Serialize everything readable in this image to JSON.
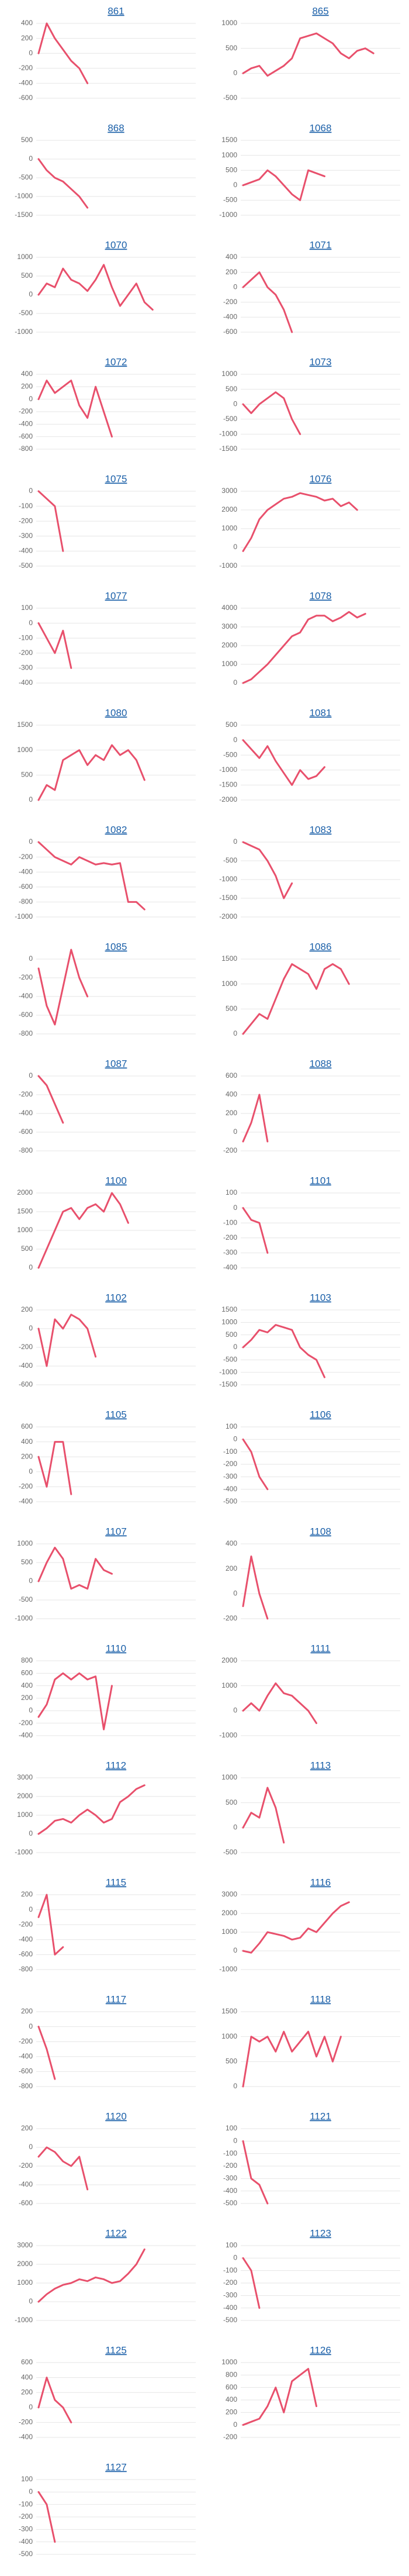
{
  "chart_data": [
    {
      "type": "line",
      "title": "861",
      "color": "#e8506c",
      "ylim": [
        -600,
        400
      ],
      "yticks": [
        -600,
        -400,
        -200,
        0,
        200,
        400
      ],
      "values": [
        0,
        400,
        200,
        50,
        -100,
        -200,
        -400
      ]
    },
    {
      "type": "line",
      "title": "865",
      "color": "#e8506c",
      "ylim": [
        -500,
        1000
      ],
      "yticks": [
        -500,
        0,
        500,
        1000
      ],
      "values": [
        0,
        100,
        150,
        -50,
        50,
        150,
        300,
        700,
        750,
        800,
        700,
        600,
        400,
        300,
        450,
        500,
        400
      ]
    },
    {
      "type": "line",
      "title": "868",
      "color": "#e8506c",
      "ylim": [
        -1500,
        500
      ],
      "yticks": [
        -1500,
        -1000,
        -500,
        0,
        500
      ],
      "values": [
        0,
        -300,
        -500,
        -600,
        -800,
        -1000,
        -1300
      ]
    },
    {
      "type": "line",
      "title": "1068",
      "color": "#e8506c",
      "ylim": [
        -1000,
        1500
      ],
      "yticks": [
        -1000,
        -500,
        0,
        500,
        1000,
        1500
      ],
      "values": [
        0,
        100,
        200,
        500,
        300,
        0,
        -300,
        -500,
        500,
        400,
        300
      ]
    },
    {
      "type": "line",
      "title": "1070",
      "color": "#e8506c",
      "ylim": [
        -1000,
        1000
      ],
      "yticks": [
        -1000,
        -500,
        0,
        500,
        1000
      ],
      "values": [
        0,
        300,
        200,
        700,
        400,
        300,
        100,
        400,
        800,
        200,
        -300,
        0,
        300,
        -200,
        -400
      ]
    },
    {
      "type": "line",
      "title": "1071",
      "color": "#e8506c",
      "ylim": [
        -600,
        400
      ],
      "yticks": [
        -600,
        -400,
        -200,
        0,
        200,
        400
      ],
      "values": [
        0,
        100,
        200,
        0,
        -100,
        -300,
        -600
      ]
    },
    {
      "type": "line",
      "title": "1072",
      "color": "#e8506c",
      "ylim": [
        -800,
        400
      ],
      "yticks": [
        -800,
        -600,
        -400,
        -200,
        0,
        200,
        400
      ],
      "values": [
        0,
        300,
        100,
        200,
        300,
        -100,
        -300,
        200,
        -200,
        -600
      ]
    },
    {
      "type": "line",
      "title": "1073",
      "color": "#e8506c",
      "ylim": [
        -1500,
        1000
      ],
      "yticks": [
        -1500,
        -1000,
        -500,
        0,
        500,
        1000
      ],
      "values": [
        0,
        -300,
        0,
        200,
        400,
        200,
        -500,
        -1000
      ]
    },
    {
      "type": "line",
      "title": "1075",
      "color": "#e8506c",
      "ylim": [
        -500,
        0
      ],
      "yticks": [
        -500,
        -400,
        -300,
        -200,
        -100,
        0
      ],
      "values": [
        0,
        -50,
        -100,
        -400
      ]
    },
    {
      "type": "line",
      "title": "1076",
      "color": "#e8506c",
      "ylim": [
        -1000,
        3000
      ],
      "yticks": [
        -1000,
        0,
        1000,
        2000,
        3000
      ],
      "values": [
        -200,
        500,
        1500,
        2000,
        2300,
        2600,
        2700,
        2900,
        2800,
        2700,
        2500,
        2600,
        2200,
        2400,
        2000
      ]
    },
    {
      "type": "line",
      "title": "1077",
      "color": "#e8506c",
      "ylim": [
        -400,
        100
      ],
      "yticks": [
        -400,
        -300,
        -200,
        -100,
        0,
        100
      ],
      "values": [
        0,
        -100,
        -200,
        -50,
        -300
      ]
    },
    {
      "type": "line",
      "title": "1078",
      "color": "#e8506c",
      "ylim": [
        0,
        4000
      ],
      "yticks": [
        0,
        1000,
        2000,
        3000,
        4000
      ],
      "values": [
        0,
        200,
        600,
        1000,
        1500,
        2000,
        2500,
        2700,
        3400,
        3600,
        3600,
        3300,
        3500,
        3800,
        3500,
        3700
      ]
    },
    {
      "type": "line",
      "title": "1080",
      "color": "#e8506c",
      "ylim": [
        0,
        1500
      ],
      "yticks": [
        0,
        500,
        1000,
        1500
      ],
      "values": [
        0,
        300,
        200,
        800,
        900,
        1000,
        700,
        900,
        800,
        1100,
        900,
        1000,
        800,
        400
      ]
    },
    {
      "type": "line",
      "title": "1081",
      "color": "#e8506c",
      "ylim": [
        -2000,
        500
      ],
      "yticks": [
        -2000,
        -1500,
        -1000,
        -500,
        0,
        500
      ],
      "values": [
        0,
        -300,
        -600,
        -200,
        -700,
        -1100,
        -1500,
        -1000,
        -1300,
        -1200,
        -900
      ]
    },
    {
      "type": "line",
      "title": "1082",
      "color": "#e8506c",
      "ylim": [
        -1000,
        0
      ],
      "yticks": [
        -1000,
        -800,
        -600,
        -400,
        -200,
        0
      ],
      "values": [
        0,
        -100,
        -200,
        -250,
        -300,
        -200,
        -250,
        -300,
        -280,
        -300,
        -280,
        -800,
        -800,
        -900
      ]
    },
    {
      "type": "line",
      "title": "1083",
      "color": "#e8506c",
      "ylim": [
        -2000,
        0
      ],
      "yticks": [
        -2000,
        -1500,
        -1000,
        -500,
        0
      ],
      "values": [
        0,
        -100,
        -200,
        -500,
        -900,
        -1500,
        -1100
      ]
    },
    {
      "type": "line",
      "title": "1085",
      "color": "#e8506c",
      "ylim": [
        -800,
        0
      ],
      "yticks": [
        -800,
        -600,
        -400,
        -200,
        0
      ],
      "values": [
        -100,
        -500,
        -700,
        -300,
        100,
        -200,
        -400
      ]
    },
    {
      "type": "line",
      "title": "1086",
      "color": "#e8506c",
      "ylim": [
        0,
        1500
      ],
      "yticks": [
        0,
        500,
        1000,
        1500
      ],
      "values": [
        0,
        200,
        400,
        300,
        700,
        1100,
        1400,
        1300,
        1200,
        900,
        1300,
        1400,
        1300,
        1000
      ]
    },
    {
      "type": "line",
      "title": "1087",
      "color": "#e8506c",
      "ylim": [
        -800,
        0
      ],
      "yticks": [
        -800,
        -600,
        -400,
        -200,
        0
      ],
      "values": [
        0,
        -100,
        -300,
        -500
      ]
    },
    {
      "type": "line",
      "title": "1088",
      "color": "#e8506c",
      "ylim": [
        -200,
        600
      ],
      "yticks": [
        -200,
        0,
        200,
        400,
        600
      ],
      "values": [
        -100,
        100,
        400,
        -100
      ]
    },
    {
      "type": "line",
      "title": "1100",
      "color": "#e8506c",
      "ylim": [
        0,
        2000
      ],
      "yticks": [
        0,
        500,
        1000,
        1500,
        2000
      ],
      "values": [
        0,
        500,
        1000,
        1500,
        1600,
        1300,
        1600,
        1700,
        1500,
        2000,
        1700,
        1200
      ]
    },
    {
      "type": "line",
      "title": "1101",
      "color": "#e8506c",
      "ylim": [
        -400,
        100
      ],
      "yticks": [
        -400,
        -300,
        -200,
        -100,
        0,
        100
      ],
      "values": [
        0,
        -80,
        -100,
        -300
      ]
    },
    {
      "type": "line",
      "title": "1102",
      "color": "#e8506c",
      "ylim": [
        -600,
        200
      ],
      "yticks": [
        -600,
        -400,
        -200,
        0,
        200
      ],
      "values": [
        0,
        -400,
        100,
        0,
        150,
        100,
        0,
        -300
      ]
    },
    {
      "type": "line",
      "title": "1103",
      "color": "#e8506c",
      "ylim": [
        -1500,
        1500
      ],
      "yticks": [
        -1500,
        -1000,
        -500,
        0,
        500,
        1000,
        1500
      ],
      "values": [
        0,
        300,
        700,
        600,
        900,
        800,
        700,
        0,
        -300,
        -500,
        -1200
      ]
    },
    {
      "type": "line",
      "title": "1105",
      "color": "#e8506c",
      "ylim": [
        -400,
        600
      ],
      "yticks": [
        -400,
        -200,
        0,
        200,
        400,
        600
      ],
      "values": [
        200,
        -200,
        400,
        400,
        -300
      ]
    },
    {
      "type": "line",
      "title": "1106",
      "color": "#e8506c",
      "ylim": [
        -500,
        100
      ],
      "yticks": [
        -500,
        -400,
        -300,
        -200,
        -100,
        0,
        100
      ],
      "values": [
        0,
        -100,
        -300,
        -400
      ]
    },
    {
      "type": "line",
      "title": "1107",
      "color": "#e8506c",
      "ylim": [
        -1000,
        1000
      ],
      "yticks": [
        -1000,
        -500,
        0,
        500,
        1000
      ],
      "values": [
        0,
        500,
        900,
        600,
        -200,
        -100,
        -200,
        600,
        300,
        200
      ]
    },
    {
      "type": "line",
      "title": "1108",
      "color": "#e8506c",
      "ylim": [
        -200,
        400
      ],
      "yticks": [
        -200,
        0,
        200,
        400
      ],
      "values": [
        -100,
        300,
        0,
        -200
      ]
    },
    {
      "type": "line",
      "title": "1110",
      "color": "#e8506c",
      "ylim": [
        -400,
        800
      ],
      "yticks": [
        -400,
        -200,
        0,
        200,
        400,
        600,
        800
      ],
      "values": [
        -100,
        100,
        500,
        600,
        500,
        600,
        500,
        550,
        -300,
        400
      ]
    },
    {
      "type": "line",
      "title": "1111",
      "color": "#e8506c",
      "ylim": [
        -1000,
        2000
      ],
      "yticks": [
        -1000,
        0,
        1000,
        2000
      ],
      "values": [
        0,
        300,
        0,
        600,
        1100,
        700,
        600,
        300,
        0,
        -500
      ]
    },
    {
      "type": "line",
      "title": "1112",
      "color": "#e8506c",
      "ylim": [
        -1000,
        3000
      ],
      "yticks": [
        -1000,
        0,
        1000,
        2000,
        3000
      ],
      "values": [
        0,
        300,
        700,
        800,
        600,
        1000,
        1300,
        1000,
        600,
        800,
        1700,
        2000,
        2400,
        2600
      ]
    },
    {
      "type": "line",
      "title": "1113",
      "color": "#e8506c",
      "ylim": [
        -500,
        1000
      ],
      "yticks": [
        -500,
        0,
        500,
        1000
      ],
      "values": [
        0,
        300,
        200,
        800,
        400,
        -300
      ]
    },
    {
      "type": "line",
      "title": "1115",
      "color": "#e8506c",
      "ylim": [
        -800,
        200
      ],
      "yticks": [
        -800,
        -600,
        -400,
        -200,
        0,
        200
      ],
      "values": [
        -100,
        200,
        -600,
        -500
      ]
    },
    {
      "type": "line",
      "title": "1116",
      "color": "#e8506c",
      "ylim": [
        -1000,
        3000
      ],
      "yticks": [
        -1000,
        0,
        1000,
        2000,
        3000
      ],
      "values": [
        0,
        -100,
        400,
        1000,
        900,
        800,
        600,
        700,
        1200,
        1000,
        1500,
        2000,
        2400,
        2600
      ]
    },
    {
      "type": "line",
      "title": "1117",
      "color": "#e8506c",
      "ylim": [
        -800,
        200
      ],
      "yticks": [
        -800,
        -600,
        -400,
        -200,
        0,
        200
      ],
      "values": [
        0,
        -300,
        -700
      ]
    },
    {
      "type": "line",
      "title": "1118",
      "color": "#e8506c",
      "ylim": [
        0,
        1500
      ],
      "yticks": [
        0,
        500,
        1000,
        1500
      ],
      "values": [
        0,
        1000,
        900,
        1000,
        700,
        1100,
        700,
        900,
        1100,
        600,
        1000,
        500,
        1000
      ]
    },
    {
      "type": "line",
      "title": "1120",
      "color": "#e8506c",
      "ylim": [
        -600,
        200
      ],
      "yticks": [
        -600,
        -400,
        -200,
        0,
        200
      ],
      "values": [
        -100,
        0,
        -50,
        -150,
        -200,
        -100,
        -450
      ]
    },
    {
      "type": "line",
      "title": "1121",
      "color": "#e8506c",
      "ylim": [
        -500,
        100
      ],
      "yticks": [
        -500,
        -400,
        -300,
        -200,
        -100,
        0,
        100
      ],
      "values": [
        0,
        -300,
        -350,
        -500
      ]
    },
    {
      "type": "line",
      "title": "1122",
      "color": "#e8506c",
      "ylim": [
        -1000,
        3000
      ],
      "yticks": [
        -1000,
        0,
        1000,
        2000,
        3000
      ],
      "values": [
        0,
        400,
        700,
        900,
        1000,
        1200,
        1100,
        1300,
        1200,
        1000,
        1100,
        1500,
        2000,
        2800
      ]
    },
    {
      "type": "line",
      "title": "1123",
      "color": "#e8506c",
      "ylim": [
        -500,
        100
      ],
      "yticks": [
        -500,
        -400,
        -300,
        -200,
        -100,
        0,
        100
      ],
      "values": [
        0,
        -100,
        -400
      ]
    },
    {
      "type": "line",
      "title": "1125",
      "color": "#e8506c",
      "ylim": [
        -400,
        600
      ],
      "yticks": [
        -400,
        -200,
        0,
        200,
        400,
        600
      ],
      "values": [
        0,
        400,
        100,
        0,
        -200
      ]
    },
    {
      "type": "line",
      "title": "1126",
      "color": "#e8506c",
      "ylim": [
        -200,
        1000
      ],
      "yticks": [
        -200,
        0,
        200,
        400,
        600,
        800,
        1000
      ],
      "values": [
        0,
        50,
        100,
        300,
        600,
        200,
        700,
        800,
        900,
        300
      ]
    },
    {
      "type": "line",
      "title": "1127",
      "color": "#e8506c",
      "ylim": [
        -500,
        100
      ],
      "yticks": [
        -500,
        -400,
        -300,
        -200,
        -100,
        0,
        100
      ],
      "values": [
        0,
        -100,
        -400
      ]
    }
  ]
}
